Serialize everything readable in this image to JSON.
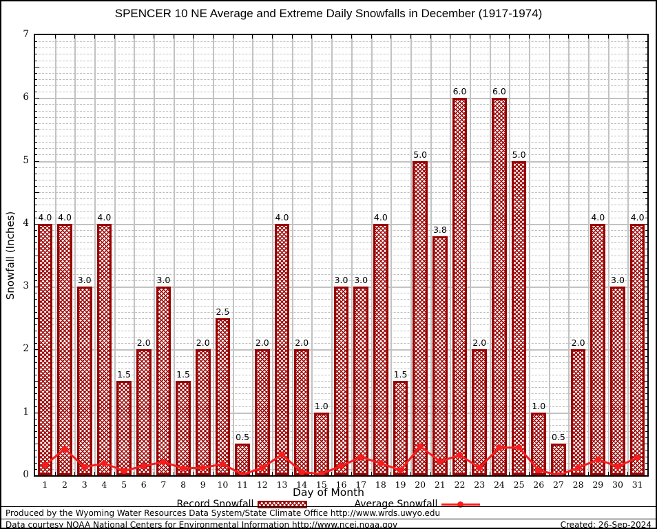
{
  "title": "SPENCER 10 NE Average and Extreme Daily Snowfalls in December (1917-1974)",
  "y_axis": {
    "label": "Snowfall (Inches)",
    "min": 0,
    "max": 7,
    "major_step": 1,
    "minor_step": 0.1
  },
  "x_axis": {
    "label": "Day of Month"
  },
  "legend": {
    "record_label": "Record Snowfall",
    "average_label": "Average Snowfall"
  },
  "footer": {
    "line1": "Produced by the Wyoming Water Resources Data System/State Climate Office http://www.wrds.uwyo.edu",
    "line2": "Data courtesy NOAA National Centers for Environmental Information http://www.ncei.noaa.gov",
    "created": "Created: 26-Sep-2024"
  },
  "colors": {
    "bar": "#990000",
    "line": "#f71b1b",
    "major_grid": "#c2c2c2",
    "minor_grid": "#bdbdbd",
    "text": "#000000"
  },
  "chart_data": {
    "type": "bar",
    "title": "SPENCER 10 NE Average and Extreme Daily Snowfalls in December (1917-1974)",
    "xlabel": "Day of Month",
    "ylabel": "Snowfall (Inches)",
    "ylim": [
      0,
      7
    ],
    "grid": true,
    "legend_position": "bottom",
    "categories": [
      1,
      2,
      3,
      4,
      5,
      6,
      7,
      8,
      9,
      10,
      11,
      12,
      13,
      14,
      15,
      16,
      17,
      18,
      19,
      20,
      21,
      22,
      23,
      24,
      25,
      26,
      27,
      28,
      29,
      30,
      31
    ],
    "series": [
      {
        "name": "Record Snowfall",
        "type": "bar",
        "color": "#990000",
        "values": [
          4.0,
          4.0,
          3.0,
          4.0,
          1.5,
          2.0,
          3.0,
          1.5,
          2.0,
          2.5,
          0.5,
          2.0,
          4.0,
          2.0,
          1.0,
          3.0,
          3.0,
          4.0,
          1.5,
          5.0,
          3.8,
          6.0,
          2.0,
          6.0,
          5.0,
          1.0,
          0.5,
          2.0,
          4.0,
          3.0,
          4.0
        ]
      },
      {
        "name": "Average Snowfall",
        "type": "line",
        "color": "#f71b1b",
        "values": [
          0.16,
          0.42,
          0.13,
          0.19,
          0.07,
          0.15,
          0.21,
          0.11,
          0.12,
          0.18,
          0.01,
          0.12,
          0.33,
          0.05,
          0.02,
          0.15,
          0.29,
          0.19,
          0.08,
          0.46,
          0.22,
          0.32,
          0.12,
          0.44,
          0.44,
          0.08,
          0.0,
          0.12,
          0.25,
          0.14,
          0.28
        ]
      }
    ]
  }
}
